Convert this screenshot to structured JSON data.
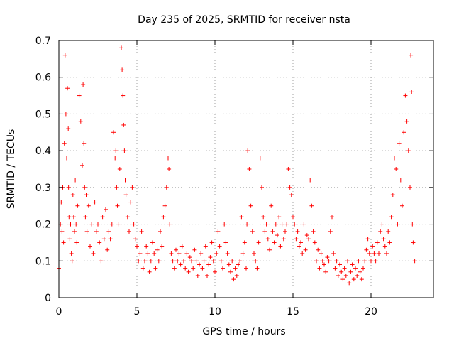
{
  "chart_data": {
    "type": "scatter",
    "title": "Day 235 of 2025, SRMTID for receiver nsta",
    "xlabel": "GPS time / hours",
    "ylabel": "SRMTID / TECUs",
    "xlim": [
      0,
      24
    ],
    "ylim": [
      0,
      0.7
    ],
    "xticks": [
      0,
      5,
      10,
      15,
      20
    ],
    "xtick_labels": [
      "0",
      "5",
      "10",
      "15",
      "20"
    ],
    "yticks": [
      0,
      0.1,
      0.2,
      0.3,
      0.4,
      0.5,
      0.6,
      0.7
    ],
    "ytick_labels": [
      "0",
      "0.1",
      "0.2",
      "0.3",
      "0.4",
      "0.5",
      "0.6",
      "0.7"
    ],
    "grid": true,
    "marker": "+",
    "color": "#ff0000",
    "series": [
      {
        "name": "SRMTID",
        "x": [
          0.0,
          0.1,
          0.15,
          0.2,
          0.25,
          0.3,
          0.35,
          0.4,
          0.45,
          0.5,
          0.55,
          0.6,
          0.62,
          0.65,
          0.7,
          0.75,
          0.8,
          0.85,
          0.9,
          0.95,
          1.0,
          1.05,
          1.1,
          1.15,
          1.2,
          1.3,
          1.4,
          1.5,
          1.55,
          1.6,
          1.65,
          1.7,
          1.75,
          1.8,
          1.9,
          2.0,
          2.1,
          2.2,
          2.3,
          2.4,
          2.5,
          2.6,
          2.7,
          2.8,
          2.9,
          3.0,
          3.1,
          3.2,
          3.3,
          3.4,
          3.5,
          3.6,
          3.65,
          3.7,
          3.75,
          3.8,
          3.9,
          4.0,
          4.05,
          4.1,
          4.15,
          4.2,
          4.25,
          4.3,
          4.4,
          4.5,
          4.6,
          4.7,
          4.8,
          4.9,
          5.0,
          5.1,
          5.2,
          5.3,
          5.4,
          5.5,
          5.6,
          5.7,
          5.8,
          5.9,
          6.0,
          6.1,
          6.2,
          6.3,
          6.4,
          6.5,
          6.6,
          6.7,
          6.8,
          6.9,
          7.0,
          7.05,
          7.1,
          7.2,
          7.3,
          7.4,
          7.5,
          7.6,
          7.7,
          7.8,
          7.9,
          8.0,
          8.1,
          8.2,
          8.3,
          8.4,
          8.5,
          8.6,
          8.7,
          8.8,
          8.9,
          9.0,
          9.1,
          9.2,
          9.3,
          9.4,
          9.5,
          9.6,
          9.7,
          9.8,
          9.9,
          10.0,
          10.1,
          10.2,
          10.3,
          10.4,
          10.5,
          10.6,
          10.7,
          10.8,
          10.9,
          11.0,
          11.1,
          11.2,
          11.3,
          11.4,
          11.5,
          11.6,
          11.7,
          11.8,
          11.9,
          12.0,
          12.05,
          12.1,
          12.2,
          12.3,
          12.4,
          12.5,
          12.6,
          12.7,
          12.8,
          12.9,
          13.0,
          13.1,
          13.2,
          13.3,
          13.4,
          13.5,
          13.6,
          13.7,
          13.8,
          13.9,
          14.0,
          14.1,
          14.2,
          14.3,
          14.4,
          14.5,
          14.6,
          14.7,
          14.8,
          14.9,
          15.0,
          15.1,
          15.2,
          15.3,
          15.4,
          15.5,
          15.6,
          15.7,
          15.8,
          15.9,
          16.0,
          16.1,
          16.2,
          16.3,
          16.4,
          16.5,
          16.6,
          16.7,
          16.8,
          16.9,
          17.0,
          17.1,
          17.2,
          17.3,
          17.4,
          17.5,
          17.6,
          17.7,
          17.8,
          17.9,
          18.0,
          18.1,
          18.2,
          18.3,
          18.4,
          18.5,
          18.6,
          18.7,
          18.8,
          18.9,
          19.0,
          19.1,
          19.2,
          19.3,
          19.4,
          19.5,
          19.6,
          19.7,
          19.8,
          19.9,
          20.0,
          20.1,
          20.2,
          20.3,
          20.4,
          20.5,
          20.6,
          20.7,
          20.8,
          20.9,
          21.0,
          21.1,
          21.2,
          21.3,
          21.4,
          21.5,
          21.6,
          21.7,
          21.8,
          21.9,
          22.0,
          22.1,
          22.2,
          22.3,
          22.4,
          22.5,
          22.55,
          22.6,
          22.65,
          22.7,
          22.8
        ],
        "y": [
          0.08,
          0.2,
          0.26,
          0.18,
          0.3,
          0.15,
          0.42,
          0.66,
          0.5,
          0.38,
          0.57,
          0.46,
          0.3,
          0.22,
          0.16,
          0.2,
          0.12,
          0.1,
          0.28,
          0.22,
          0.18,
          0.32,
          0.2,
          0.15,
          0.25,
          0.55,
          0.48,
          0.36,
          0.58,
          0.42,
          0.3,
          0.22,
          0.28,
          0.18,
          0.25,
          0.14,
          0.2,
          0.12,
          0.26,
          0.18,
          0.2,
          0.15,
          0.1,
          0.22,
          0.16,
          0.24,
          0.13,
          0.18,
          0.16,
          0.2,
          0.45,
          0.38,
          0.4,
          0.3,
          0.25,
          0.2,
          0.35,
          0.68,
          0.62,
          0.55,
          0.47,
          0.4,
          0.32,
          0.28,
          0.22,
          0.18,
          0.26,
          0.3,
          0.2,
          0.16,
          0.14,
          0.1,
          0.12,
          0.18,
          0.08,
          0.1,
          0.14,
          0.12,
          0.07,
          0.1,
          0.15,
          0.12,
          0.08,
          0.13,
          0.1,
          0.18,
          0.14,
          0.22,
          0.25,
          0.3,
          0.38,
          0.35,
          0.2,
          0.12,
          0.1,
          0.08,
          0.13,
          0.1,
          0.12,
          0.09,
          0.14,
          0.1,
          0.08,
          0.12,
          0.07,
          0.11,
          0.1,
          0.08,
          0.13,
          0.1,
          0.06,
          0.09,
          0.12,
          0.08,
          0.1,
          0.14,
          0.06,
          0.09,
          0.11,
          0.15,
          0.1,
          0.07,
          0.12,
          0.18,
          0.14,
          0.1,
          0.08,
          0.2,
          0.15,
          0.12,
          0.09,
          0.07,
          0.1,
          0.05,
          0.08,
          0.06,
          0.09,
          0.1,
          0.22,
          0.12,
          0.15,
          0.08,
          0.2,
          0.4,
          0.35,
          0.25,
          0.18,
          0.12,
          0.1,
          0.08,
          0.15,
          0.38,
          0.3,
          0.22,
          0.18,
          0.2,
          0.16,
          0.13,
          0.25,
          0.18,
          0.15,
          0.2,
          0.17,
          0.22,
          0.14,
          0.2,
          0.16,
          0.18,
          0.2,
          0.35,
          0.3,
          0.28,
          0.22,
          0.2,
          0.16,
          0.18,
          0.14,
          0.15,
          0.12,
          0.2,
          0.13,
          0.17,
          0.16,
          0.32,
          0.25,
          0.18,
          0.15,
          0.1,
          0.13,
          0.08,
          0.12,
          0.1,
          0.09,
          0.07,
          0.11,
          0.1,
          0.18,
          0.22,
          0.12,
          0.08,
          0.1,
          0.06,
          0.09,
          0.07,
          0.05,
          0.08,
          0.06,
          0.1,
          0.04,
          0.07,
          0.09,
          0.05,
          0.08,
          0.06,
          0.1,
          0.07,
          0.05,
          0.08,
          0.1,
          0.13,
          0.16,
          0.12,
          0.1,
          0.14,
          0.12,
          0.1,
          0.15,
          0.12,
          0.18,
          0.2,
          0.16,
          0.14,
          0.12,
          0.18,
          0.15,
          0.22,
          0.28,
          0.38,
          0.35,
          0.2,
          0.42,
          0.32,
          0.25,
          0.45,
          0.55,
          0.48,
          0.4,
          0.3,
          0.66,
          0.56,
          0.2,
          0.15,
          0.1
        ]
      }
    ]
  }
}
